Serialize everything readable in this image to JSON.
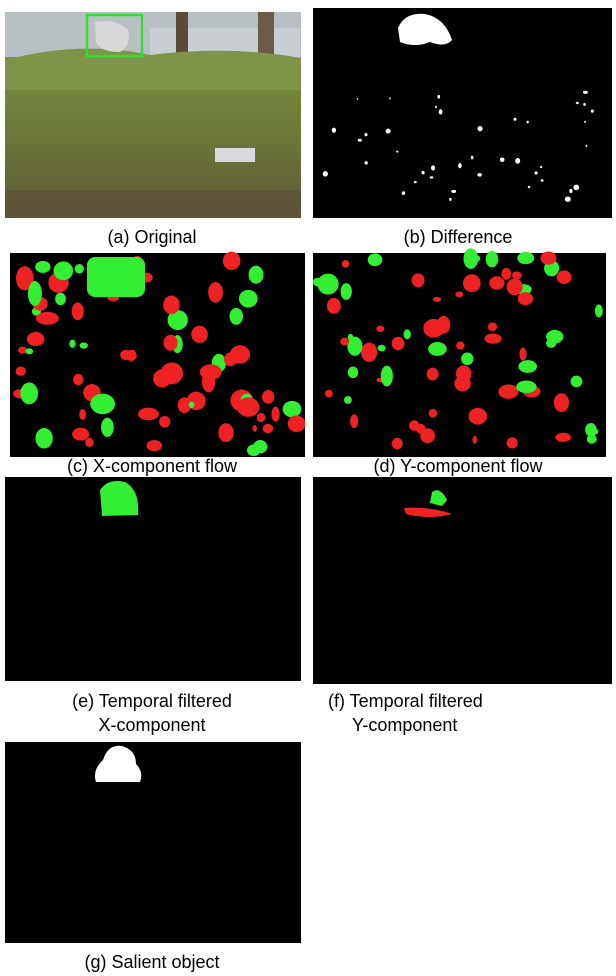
{
  "panels": [
    {
      "caption_lines": [
        "(a) Original"
      ]
    },
    {
      "caption_lines": [
        "(b) Difference"
      ]
    },
    {
      "caption_lines": [
        "(c) X-component flow"
      ]
    },
    {
      "caption_lines": [
        "(d) Y-component flow"
      ]
    },
    {
      "caption_lines": [
        "(e) Temporal filtered",
        "X-component"
      ]
    },
    {
      "caption_lines": [
        "(f) Temporal filtered",
        "Y-component"
      ]
    },
    {
      "caption_lines": [
        "(g) Salient object"
      ]
    }
  ]
}
